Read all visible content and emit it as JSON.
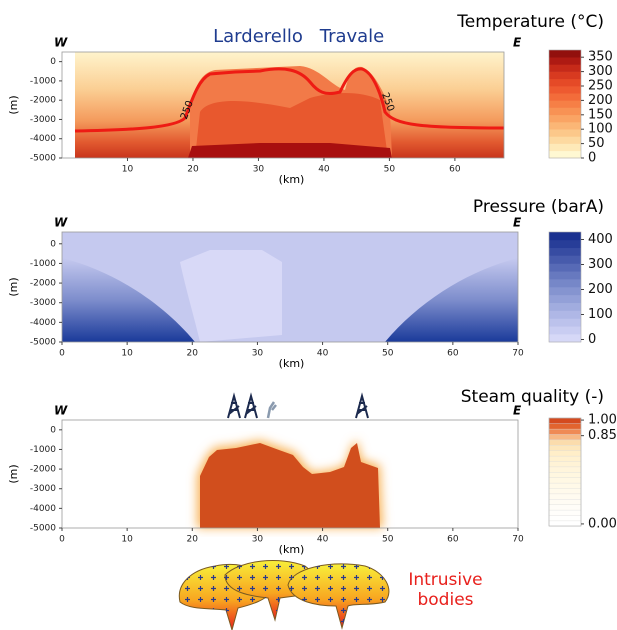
{
  "chart_data": [
    {
      "type": "contour",
      "title": "Temperature (°C)",
      "xlabel": "(km)",
      "ylabel": "(m)",
      "left_label": "W",
      "right_label": "E",
      "annotations": [
        "Larderello",
        "Travale",
        "250",
        "250"
      ],
      "xlim": [
        0,
        67.5
      ],
      "xticks": [
        10,
        20,
        30,
        40,
        50,
        60
      ],
      "ylim": [
        -5000,
        500
      ],
      "yticks": [
        0,
        -1000,
        -2000,
        -3000,
        -4000,
        -5000
      ],
      "colorbar": {
        "lim": [
          0,
          375
        ],
        "ticks": [
          0,
          50,
          100,
          150,
          200,
          250,
          300,
          350
        ],
        "colors": [
          "#fff8d2",
          "#fee9b8",
          "#fdd9a0",
          "#fcc88a",
          "#fbb676",
          "#faa464",
          "#f89254",
          "#f67f46",
          "#f36c3a",
          "#ee5a30",
          "#e54a27",
          "#d83a20",
          "#c62a19",
          "#ae1a13",
          "#92100d"
        ]
      }
    },
    {
      "type": "contour",
      "title": "Pressure (barA)",
      "xlabel": "(km)",
      "ylabel": "(m)",
      "left_label": "W",
      "right_label": "E",
      "xlim": [
        0,
        70
      ],
      "xticks": [
        0,
        10,
        20,
        30,
        40,
        50,
        60,
        70
      ],
      "ylim": [
        -5000,
        600
      ],
      "yticks": [
        0,
        -1000,
        -2000,
        -3000,
        -4000,
        -5000
      ],
      "colorbar": {
        "lim": [
          -10,
          430
        ],
        "ticks": [
          0,
          100,
          200,
          300,
          400
        ],
        "colors": [
          "#d6d8f7",
          "#c9cdf2",
          "#bcc2ec",
          "#afb7e6",
          "#a1acdf",
          "#93a0d8",
          "#8594d0",
          "#7687c8",
          "#6779bf",
          "#576ab6",
          "#475bac",
          "#374ca2",
          "#273d98",
          "#1a3190"
        ]
      }
    },
    {
      "type": "contour",
      "title": "Steam quality (-)",
      "xlabel": "(km)",
      "ylabel": "(m)",
      "left_label": "W",
      "right_label": "E",
      "annotations": [
        "Intrusive bodies"
      ],
      "xlim": [
        0,
        70
      ],
      "xticks": [
        0,
        10,
        20,
        30,
        40,
        50,
        60,
        70
      ],
      "ylim": [
        -5000,
        500
      ],
      "yticks": [
        0,
        -1000,
        -2000,
        -3000,
        -4000,
        -5000
      ],
      "colorbar": {
        "lim": [
          -0.02,
          1.02
        ],
        "ticks": [
          {
            "value": 0,
            "label": "0.00"
          },
          {
            "value": 0.85,
            "label": "0.85"
          },
          {
            "value": 1,
            "label": "1.00"
          }
        ],
        "colors": [
          "#ffffff",
          "#fffffe",
          "#fffefb",
          "#fffdf8",
          "#fffcf4",
          "#fffbf0",
          "#fffaec",
          "#fff9e8",
          "#fff8e4",
          "#fff7e0",
          "#fff5dc",
          "#fff3d6",
          "#fff1d0",
          "#ffeec8",
          "#fde7bc",
          "#fbdcac",
          "#f7b885",
          "#ef8a55",
          "#e2642f",
          "#d44a1f"
        ]
      }
    }
  ]
}
